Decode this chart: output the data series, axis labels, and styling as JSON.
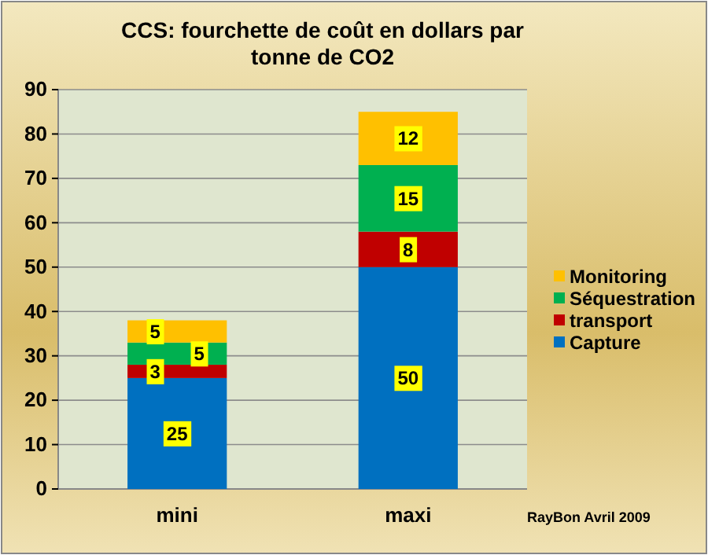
{
  "chart_data": {
    "type": "bar",
    "title": "CCS: fourchette de coût en dollars par tonne de CO2",
    "categories": [
      "mini",
      "maxi"
    ],
    "stacked": true,
    "series": [
      {
        "name": "Capture",
        "color": "#0070c0",
        "values": [
          25,
          50
        ]
      },
      {
        "name": "transport",
        "color": "#c00000",
        "values": [
          3,
          8
        ]
      },
      {
        "name": "Séquestration",
        "color": "#00b050",
        "values": [
          5,
          15
        ]
      },
      {
        "name": "Monitoring",
        "color": "#ffc000",
        "values": [
          5,
          12
        ]
      }
    ],
    "ylim": [
      0,
      90
    ],
    "yticks": [
      0,
      10,
      20,
      30,
      40,
      50,
      60,
      70,
      80,
      90
    ],
    "grid": "y",
    "legend": "right",
    "data_labels": true,
    "annotations": [
      "RayBon Avril 2009"
    ]
  }
}
